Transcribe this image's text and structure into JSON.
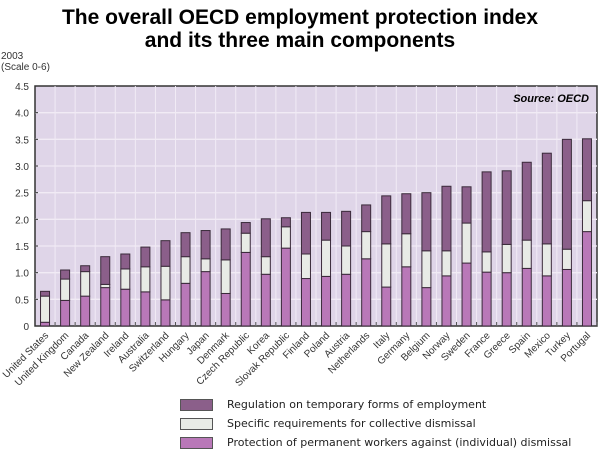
{
  "chart_data": {
    "type": "bar",
    "stacked": true,
    "title": "The overall OECD employment protection index and its three main components",
    "title_lines": [
      "The overall OECD employment protection index",
      "and its three main components"
    ],
    "ylabel_lines": [
      "2003",
      "(Scale 0-6)"
    ],
    "xlabel": "",
    "ylim": [
      0,
      4.5
    ],
    "yticks": [
      0,
      0.5,
      1.0,
      1.5,
      2.0,
      2.5,
      3.0,
      3.5,
      4.0,
      4.5
    ],
    "ytick_labels": [
      "0",
      "0.5",
      "1.0",
      "1.5",
      "2.0",
      "2.5",
      "3.0",
      "3.5",
      "4.0",
      "4.5"
    ],
    "grid": true,
    "annotation": "Source: OECD",
    "annotation_position": "top-right",
    "legend_position": "bottom",
    "categories": [
      "United States",
      "United Kingdom",
      "Canada",
      "New Zealand",
      "Ireland",
      "Australia",
      "Switzerland",
      "Hungary",
      "Japan",
      "Denmark",
      "Czech Republic",
      "Korea",
      "Slovak Republic",
      "Finland",
      "Poland",
      "Austria",
      "Netherlands",
      "Italy",
      "Germany",
      "Belgium",
      "Norway",
      "Sweden",
      "France",
      "Greece",
      "Spain",
      "Mexico",
      "Turkey",
      "Portugal"
    ],
    "series": [
      {
        "name": "Protection of permanent workers against (individual) dismissal",
        "color": "#b978b8",
        "values": [
          0.07,
          0.48,
          0.56,
          0.72,
          0.69,
          0.64,
          0.49,
          0.8,
          1.02,
          0.61,
          1.38,
          0.97,
          1.46,
          0.89,
          0.93,
          0.97,
          1.26,
          0.73,
          1.11,
          0.72,
          0.94,
          1.18,
          1.01,
          1.0,
          1.08,
          0.94,
          1.06,
          1.77
        ]
      },
      {
        "name": "Specific requirements for collective dismissal",
        "color": "#e8ebe6",
        "values": [
          0.49,
          0.4,
          0.46,
          0.06,
          0.38,
          0.47,
          0.63,
          0.5,
          0.24,
          0.63,
          0.36,
          0.33,
          0.4,
          0.46,
          0.68,
          0.53,
          0.51,
          0.81,
          0.62,
          0.69,
          0.47,
          0.75,
          0.38,
          0.53,
          0.53,
          0.6,
          0.38,
          0.58
        ]
      },
      {
        "name": "Regulation on temporary forms of employment",
        "color": "#8b5f8a",
        "values": [
          0.09,
          0.17,
          0.11,
          0.52,
          0.28,
          0.37,
          0.48,
          0.45,
          0.53,
          0.58,
          0.2,
          0.71,
          0.17,
          0.78,
          0.52,
          0.65,
          0.5,
          0.9,
          0.75,
          1.09,
          1.21,
          0.68,
          1.5,
          1.38,
          1.46,
          1.7,
          2.06,
          1.16
        ]
      }
    ]
  }
}
